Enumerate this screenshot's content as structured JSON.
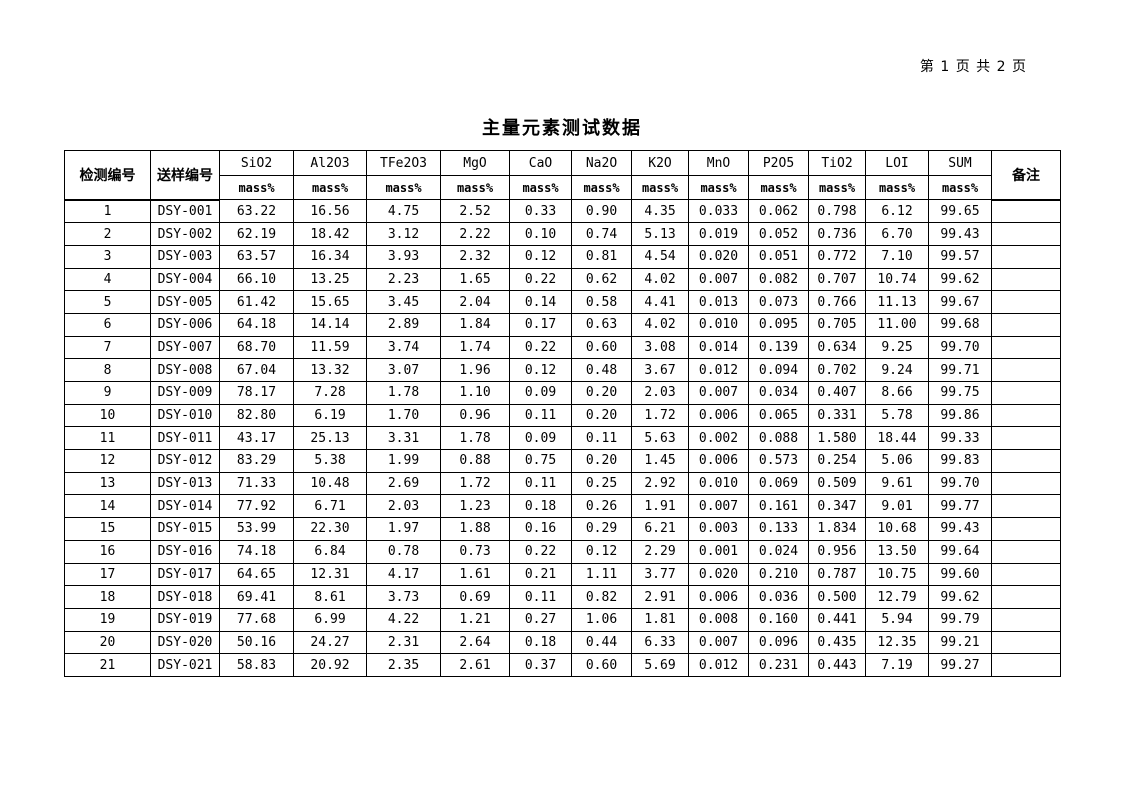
{
  "page": {
    "indicator": "第 1 页  共 2 页"
  },
  "title": "主量元素测试数据",
  "table": {
    "header": {
      "col_detect_id": "检测编号",
      "col_sample_id": "送样编号",
      "col_remark": "备注",
      "unit": "mass%",
      "oxides": [
        "SiO2",
        "Al2O3",
        "TFe2O3",
        "MgO",
        "CaO",
        "Na2O",
        "K2O",
        "MnO",
        "P2O5",
        "TiO2",
        "LOI",
        "SUM"
      ]
    },
    "rows": [
      {
        "no": "1",
        "sample": "DSY-001",
        "values": [
          "63.22",
          "16.56",
          "4.75",
          "2.52",
          "0.33",
          "0.90",
          "4.35",
          "0.033",
          "0.062",
          "0.798",
          "6.12",
          "99.65"
        ],
        "remark": ""
      },
      {
        "no": "2",
        "sample": "DSY-002",
        "values": [
          "62.19",
          "18.42",
          "3.12",
          "2.22",
          "0.10",
          "0.74",
          "5.13",
          "0.019",
          "0.052",
          "0.736",
          "6.70",
          "99.43"
        ],
        "remark": ""
      },
      {
        "no": "3",
        "sample": "DSY-003",
        "values": [
          "63.57",
          "16.34",
          "3.93",
          "2.32",
          "0.12",
          "0.81",
          "4.54",
          "0.020",
          "0.051",
          "0.772",
          "7.10",
          "99.57"
        ],
        "remark": ""
      },
      {
        "no": "4",
        "sample": "DSY-004",
        "values": [
          "66.10",
          "13.25",
          "2.23",
          "1.65",
          "0.22",
          "0.62",
          "4.02",
          "0.007",
          "0.082",
          "0.707",
          "10.74",
          "99.62"
        ],
        "remark": ""
      },
      {
        "no": "5",
        "sample": "DSY-005",
        "values": [
          "61.42",
          "15.65",
          "3.45",
          "2.04",
          "0.14",
          "0.58",
          "4.41",
          "0.013",
          "0.073",
          "0.766",
          "11.13",
          "99.67"
        ],
        "remark": ""
      },
      {
        "no": "6",
        "sample": "DSY-006",
        "values": [
          "64.18",
          "14.14",
          "2.89",
          "1.84",
          "0.17",
          "0.63",
          "4.02",
          "0.010",
          "0.095",
          "0.705",
          "11.00",
          "99.68"
        ],
        "remark": ""
      },
      {
        "no": "7",
        "sample": "DSY-007",
        "values": [
          "68.70",
          "11.59",
          "3.74",
          "1.74",
          "0.22",
          "0.60",
          "3.08",
          "0.014",
          "0.139",
          "0.634",
          "9.25",
          "99.70"
        ],
        "remark": ""
      },
      {
        "no": "8",
        "sample": "DSY-008",
        "values": [
          "67.04",
          "13.32",
          "3.07",
          "1.96",
          "0.12",
          "0.48",
          "3.67",
          "0.012",
          "0.094",
          "0.702",
          "9.24",
          "99.71"
        ],
        "remark": ""
      },
      {
        "no": "9",
        "sample": "DSY-009",
        "values": [
          "78.17",
          "7.28",
          "1.78",
          "1.10",
          "0.09",
          "0.20",
          "2.03",
          "0.007",
          "0.034",
          "0.407",
          "8.66",
          "99.75"
        ],
        "remark": ""
      },
      {
        "no": "10",
        "sample": "DSY-010",
        "values": [
          "82.80",
          "6.19",
          "1.70",
          "0.96",
          "0.11",
          "0.20",
          "1.72",
          "0.006",
          "0.065",
          "0.331",
          "5.78",
          "99.86"
        ],
        "remark": ""
      },
      {
        "no": "11",
        "sample": "DSY-011",
        "values": [
          "43.17",
          "25.13",
          "3.31",
          "1.78",
          "0.09",
          "0.11",
          "5.63",
          "0.002",
          "0.088",
          "1.580",
          "18.44",
          "99.33"
        ],
        "remark": ""
      },
      {
        "no": "12",
        "sample": "DSY-012",
        "values": [
          "83.29",
          "5.38",
          "1.99",
          "0.88",
          "0.75",
          "0.20",
          "1.45",
          "0.006",
          "0.573",
          "0.254",
          "5.06",
          "99.83"
        ],
        "remark": ""
      },
      {
        "no": "13",
        "sample": "DSY-013",
        "values": [
          "71.33",
          "10.48",
          "2.69",
          "1.72",
          "0.11",
          "0.25",
          "2.92",
          "0.010",
          "0.069",
          "0.509",
          "9.61",
          "99.70"
        ],
        "remark": ""
      },
      {
        "no": "14",
        "sample": "DSY-014",
        "values": [
          "77.92",
          "6.71",
          "2.03",
          "1.23",
          "0.18",
          "0.26",
          "1.91",
          "0.007",
          "0.161",
          "0.347",
          "9.01",
          "99.77"
        ],
        "remark": ""
      },
      {
        "no": "15",
        "sample": "DSY-015",
        "values": [
          "53.99",
          "22.30",
          "1.97",
          "1.88",
          "0.16",
          "0.29",
          "6.21",
          "0.003",
          "0.133",
          "1.834",
          "10.68",
          "99.43"
        ],
        "remark": ""
      },
      {
        "no": "16",
        "sample": "DSY-016",
        "values": [
          "74.18",
          "6.84",
          "0.78",
          "0.73",
          "0.22",
          "0.12",
          "2.29",
          "0.001",
          "0.024",
          "0.956",
          "13.50",
          "99.64"
        ],
        "remark": ""
      },
      {
        "no": "17",
        "sample": "DSY-017",
        "values": [
          "64.65",
          "12.31",
          "4.17",
          "1.61",
          "0.21",
          "1.11",
          "3.77",
          "0.020",
          "0.210",
          "0.787",
          "10.75",
          "99.60"
        ],
        "remark": ""
      },
      {
        "no": "18",
        "sample": "DSY-018",
        "values": [
          "69.41",
          "8.61",
          "3.73",
          "0.69",
          "0.11",
          "0.82",
          "2.91",
          "0.006",
          "0.036",
          "0.500",
          "12.79",
          "99.62"
        ],
        "remark": ""
      },
      {
        "no": "19",
        "sample": "DSY-019",
        "values": [
          "77.68",
          "6.99",
          "4.22",
          "1.21",
          "0.27",
          "1.06",
          "1.81",
          "0.008",
          "0.160",
          "0.441",
          "5.94",
          "99.79"
        ],
        "remark": ""
      },
      {
        "no": "20",
        "sample": "DSY-020",
        "values": [
          "50.16",
          "24.27",
          "2.31",
          "2.64",
          "0.18",
          "0.44",
          "6.33",
          "0.007",
          "0.096",
          "0.435",
          "12.35",
          "99.21"
        ],
        "remark": ""
      },
      {
        "no": "21",
        "sample": "DSY-021",
        "values": [
          "58.83",
          "20.92",
          "2.35",
          "2.61",
          "0.37",
          "0.60",
          "5.69",
          "0.012",
          "0.231",
          "0.443",
          "7.19",
          "99.27"
        ],
        "remark": ""
      }
    ]
  }
}
